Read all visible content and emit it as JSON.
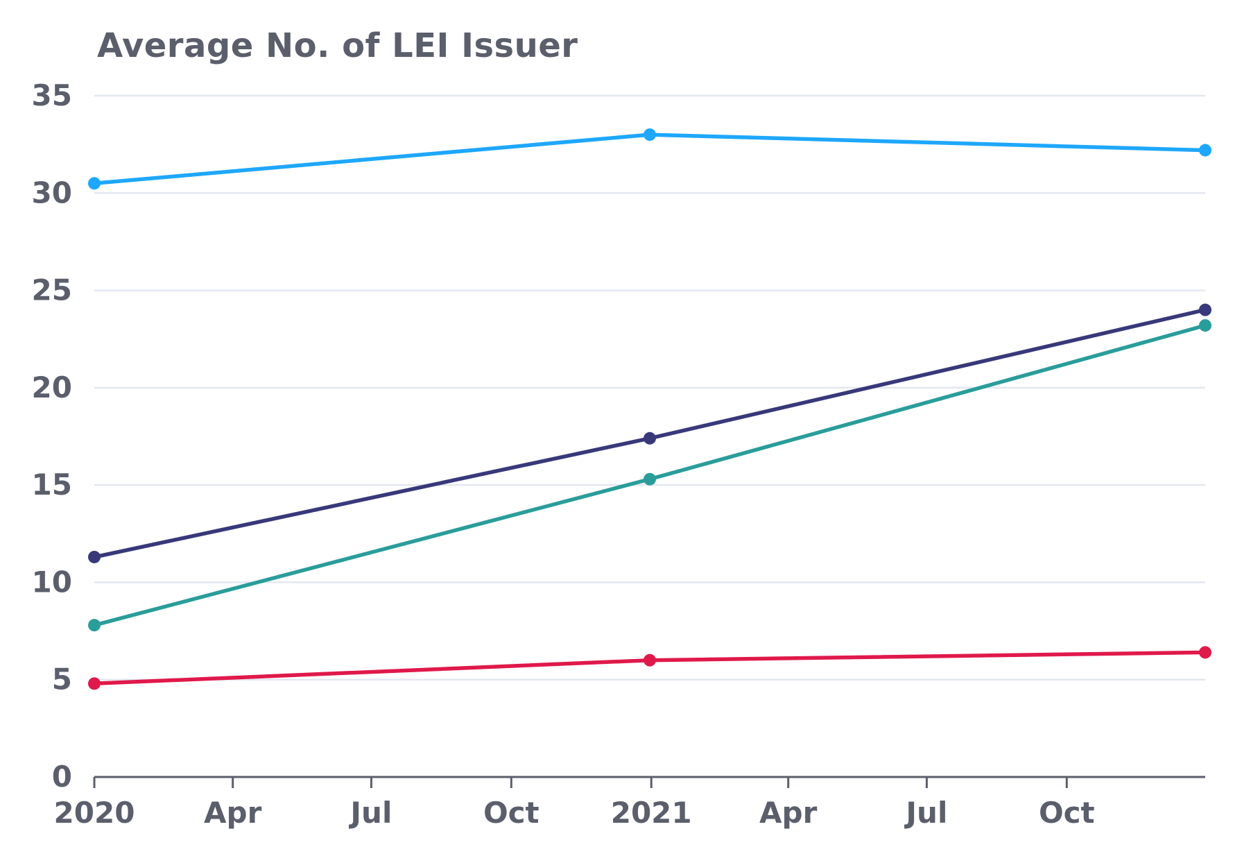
{
  "chart_data": {
    "type": "line",
    "title": "Average No. of LEI Issuer",
    "xlabel": "",
    "ylabel": "",
    "ylim": [
      0,
      35
    ],
    "yticks": [
      "0",
      "5",
      "10",
      "15",
      "20",
      "25",
      "30",
      "35"
    ],
    "xlim": [
      "2020-01-01",
      "2021-12-31"
    ],
    "xticks": [
      {
        "date": "2020-01-01",
        "label": "2020"
      },
      {
        "date": "2020-04-01",
        "label": "Apr"
      },
      {
        "date": "2020-07-01",
        "label": "Jul"
      },
      {
        "date": "2020-10-01",
        "label": "Oct"
      },
      {
        "date": "2021-01-01",
        "label": "2021"
      },
      {
        "date": "2021-04-01",
        "label": "Apr"
      },
      {
        "date": "2021-07-01",
        "label": "Jul"
      },
      {
        "date": "2021-10-01",
        "label": "Oct"
      }
    ],
    "grid": true,
    "x": [
      "2020-01-01",
      "2020-12-31",
      "2021-12-31"
    ],
    "series": [
      {
        "color": "#1ea7fd",
        "values": [
          30.5,
          33.0,
          32.2
        ]
      },
      {
        "color": "#38387a",
        "values": [
          11.3,
          17.4,
          24.0
        ]
      },
      {
        "color": "#2a9d9a",
        "values": [
          7.8,
          15.3,
          23.2
        ]
      },
      {
        "color": "#e0194b",
        "values": [
          4.8,
          6.0,
          6.4
        ]
      }
    ]
  }
}
